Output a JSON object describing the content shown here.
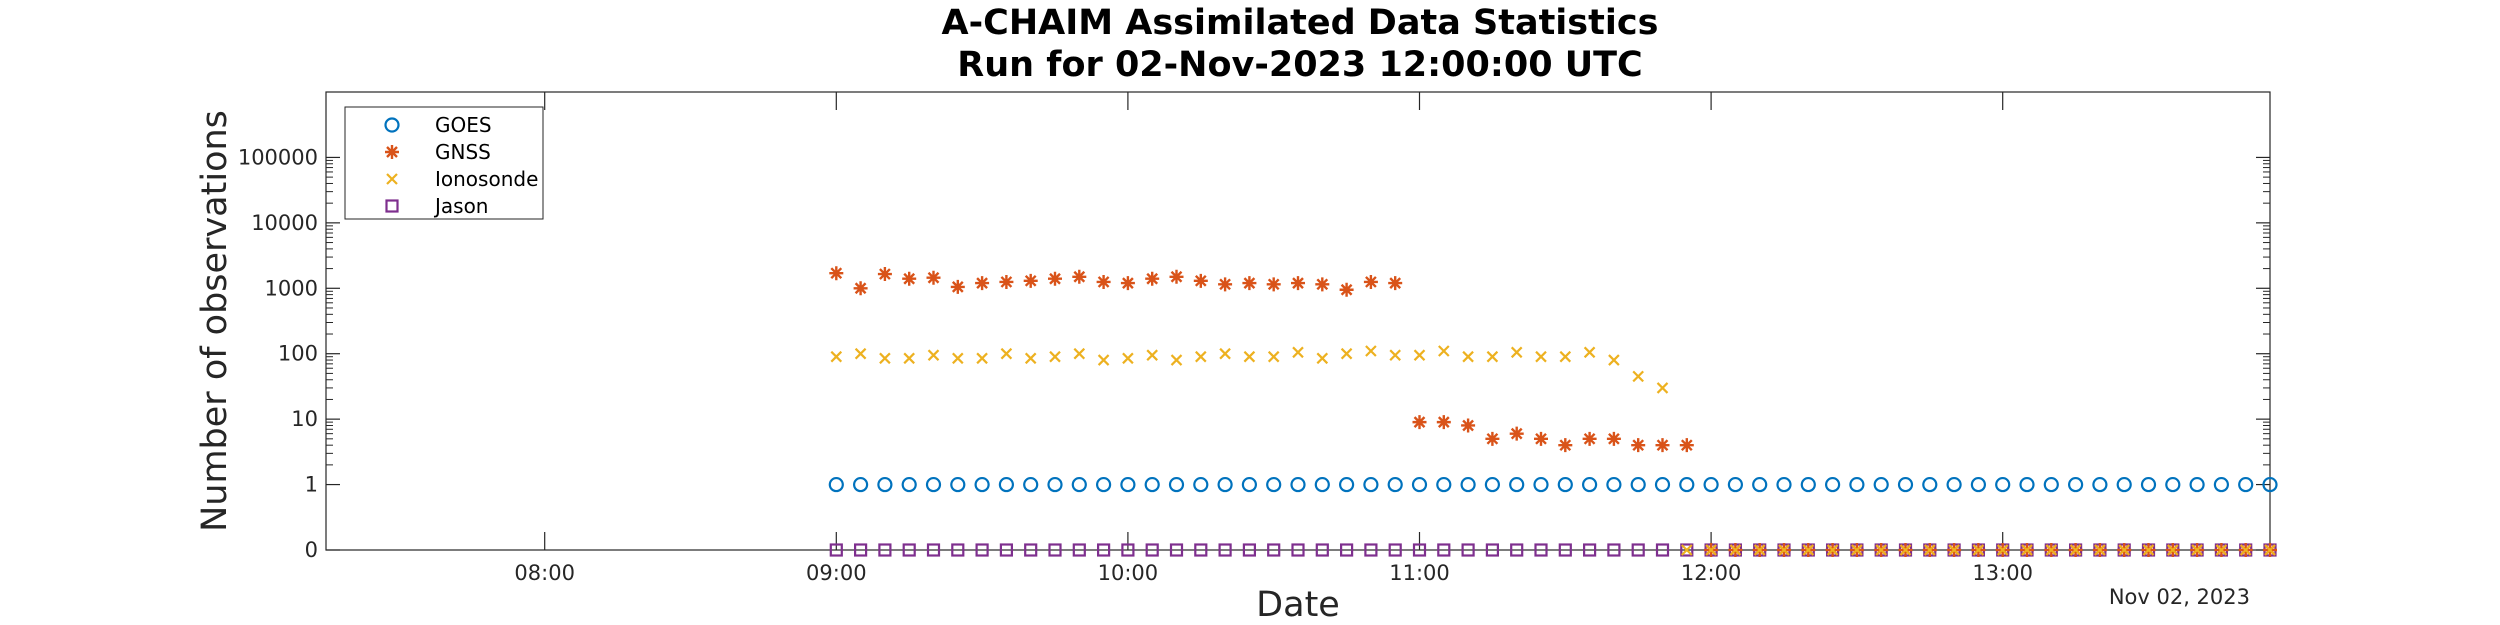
{
  "chart_data": {
    "type": "scatter",
    "title": [
      "A-CHAIM Assimilated Data Statistics",
      "Run for 02-Nov-2023 12:00:00 UTC"
    ],
    "xlabel": "Date",
    "ylabel": "Number of observations",
    "x_axis": {
      "type": "time",
      "range": [
        "07:15",
        "13:55"
      ],
      "ticks": [
        "08:00",
        "09:00",
        "10:00",
        "11:00",
        "12:00",
        "13:00"
      ],
      "date_label": "Nov 02, 2023"
    },
    "y_axis": {
      "scale": "log",
      "range": [
        0,
        100000
      ],
      "ticks": [
        0,
        1,
        10,
        100,
        1000,
        10000,
        100000
      ],
      "tick_labels": [
        "0",
        "1",
        "10",
        "100",
        "1000",
        "10000",
        "100000"
      ]
    },
    "legend": {
      "position": "top-left",
      "entries": [
        "GOES",
        "GNSS",
        "Ionosonde",
        "Jason"
      ]
    },
    "grid": false,
    "series": [
      {
        "name": "GOES",
        "marker": "circle",
        "color": "#0072BD",
        "x": [
          "09:00",
          "09:05",
          "09:10",
          "09:15",
          "09:20",
          "09:25",
          "09:30",
          "09:35",
          "09:40",
          "09:45",
          "09:50",
          "09:55",
          "10:00",
          "10:05",
          "10:10",
          "10:15",
          "10:20",
          "10:25",
          "10:30",
          "10:35",
          "10:40",
          "10:45",
          "10:50",
          "10:55",
          "11:00",
          "11:05",
          "11:10",
          "11:15",
          "11:20",
          "11:25",
          "11:30",
          "11:35",
          "11:40",
          "11:45",
          "11:50",
          "11:55",
          "12:00",
          "12:05",
          "12:10",
          "12:15",
          "12:20",
          "12:25",
          "12:30",
          "12:35",
          "12:40",
          "12:45",
          "12:50",
          "12:55",
          "13:00",
          "13:05",
          "13:10",
          "13:15",
          "13:20",
          "13:25",
          "13:30",
          "13:35",
          "13:40",
          "13:45",
          "13:50",
          "13:55"
        ],
        "y": [
          1,
          1,
          1,
          1,
          1,
          1,
          1,
          1,
          1,
          1,
          1,
          1,
          1,
          1,
          1,
          1,
          1,
          1,
          1,
          1,
          1,
          1,
          1,
          1,
          1,
          1,
          1,
          1,
          1,
          1,
          1,
          1,
          1,
          1,
          1,
          1,
          1,
          1,
          1,
          1,
          1,
          1,
          1,
          1,
          1,
          1,
          1,
          1,
          1,
          1,
          1,
          1,
          1,
          1,
          1,
          1,
          1,
          1,
          1,
          1
        ]
      },
      {
        "name": "GNSS",
        "marker": "asterisk",
        "color": "#D95319",
        "x": [
          "09:00",
          "09:05",
          "09:10",
          "09:15",
          "09:20",
          "09:25",
          "09:30",
          "09:35",
          "09:40",
          "09:45",
          "09:50",
          "09:55",
          "10:00",
          "10:05",
          "10:10",
          "10:15",
          "10:20",
          "10:25",
          "10:30",
          "10:35",
          "10:40",
          "10:45",
          "10:50",
          "10:55",
          "11:00",
          "11:05",
          "11:10",
          "11:15",
          "11:20",
          "11:25",
          "11:30",
          "11:35",
          "11:40",
          "11:45",
          "11:50",
          "11:55"
        ],
        "y": [
          1700,
          1000,
          1650,
          1400,
          1450,
          1050,
          1200,
          1250,
          1300,
          1400,
          1500,
          1250,
          1200,
          1400,
          1500,
          1300,
          1150,
          1200,
          1150,
          1200,
          1150,
          950,
          1250,
          1200,
          9,
          9,
          8,
          5,
          6,
          5,
          4,
          5,
          5,
          4,
          4,
          4
        ]
      },
      {
        "name": "Ionosonde",
        "marker": "x",
        "color": "#EDB120",
        "x": [
          "09:00",
          "09:05",
          "09:10",
          "09:15",
          "09:20",
          "09:25",
          "09:30",
          "09:35",
          "09:40",
          "09:45",
          "09:50",
          "09:55",
          "10:00",
          "10:05",
          "10:10",
          "10:15",
          "10:20",
          "10:25",
          "10:30",
          "10:35",
          "10:40",
          "10:45",
          "10:50",
          "10:55",
          "11:00",
          "11:05",
          "11:10",
          "11:15",
          "11:20",
          "11:25",
          "11:30",
          "11:35",
          "11:40",
          "11:45",
          "11:50"
        ],
        "y": [
          90,
          100,
          85,
          85,
          95,
          85,
          85,
          100,
          85,
          90,
          100,
          80,
          85,
          95,
          80,
          90,
          100,
          90,
          90,
          105,
          85,
          100,
          110,
          95,
          95,
          110,
          90,
          90,
          105,
          90,
          90,
          105,
          80,
          45,
          30
        ]
      },
      {
        "name": "Jason",
        "marker": "square",
        "color": "#7E2F8E",
        "x": [
          "09:00",
          "09:05",
          "09:10",
          "09:15",
          "09:20",
          "09:25",
          "09:30",
          "09:35",
          "09:40",
          "09:45",
          "09:50",
          "09:55",
          "10:00",
          "10:05",
          "10:10",
          "10:15",
          "10:20",
          "10:25",
          "10:30",
          "10:35",
          "10:40",
          "10:45",
          "10:50",
          "10:55",
          "11:00",
          "11:05",
          "11:10",
          "11:15",
          "11:20",
          "11:25",
          "11:30",
          "11:35",
          "11:40",
          "11:45",
          "11:50",
          "11:55",
          "12:00",
          "12:05",
          "12:10",
          "12:15",
          "12:20",
          "12:25",
          "12:30",
          "12:35",
          "12:40",
          "12:45",
          "12:50",
          "12:55",
          "13:00",
          "13:05",
          "13:10",
          "13:15",
          "13:20",
          "13:25",
          "13:30",
          "13:35",
          "13:40",
          "13:45",
          "13:50",
          "13:55"
        ],
        "y": [
          0,
          0,
          0,
          0,
          0,
          0,
          0,
          0,
          0,
          0,
          0,
          0,
          0,
          0,
          0,
          0,
          0,
          0,
          0,
          0,
          0,
          0,
          0,
          0,
          0,
          0,
          0,
          0,
          0,
          0,
          0,
          0,
          0,
          0,
          0,
          0,
          0,
          0,
          0,
          0,
          0,
          0,
          0,
          0,
          0,
          0,
          0,
          0,
          0,
          0,
          0,
          0,
          0,
          0,
          0,
          0,
          0,
          0,
          0,
          0
        ]
      },
      {
        "name": "",
        "marker": "asterisk",
        "color": "#D95319",
        "x": [
          "12:00",
          "12:05",
          "12:10",
          "12:15",
          "12:20",
          "12:25",
          "12:30",
          "12:35",
          "12:40",
          "12:45",
          "12:50",
          "12:55",
          "13:00",
          "13:05",
          "13:10",
          "13:15",
          "13:20",
          "13:25",
          "13:30",
          "13:35",
          "13:40",
          "13:45",
          "13:50",
          "13:55"
        ],
        "y": [
          0,
          0,
          0,
          0,
          0,
          0,
          0,
          0,
          0,
          0,
          0,
          0,
          0,
          0,
          0,
          0,
          0,
          0,
          0,
          0,
          0,
          0,
          0,
          0
        ]
      },
      {
        "name": "",
        "marker": "x",
        "color": "#EDB120",
        "x": [
          "11:55",
          "12:00",
          "12:05",
          "12:10",
          "12:15",
          "12:20",
          "12:25",
          "12:30",
          "12:35",
          "12:40",
          "12:45",
          "12:50",
          "12:55",
          "13:00",
          "13:05",
          "13:10",
          "13:15",
          "13:20",
          "13:25",
          "13:30",
          "13:35",
          "13:40",
          "13:45",
          "13:50",
          "13:55"
        ],
        "y": [
          0,
          0,
          0,
          0,
          0,
          0,
          0,
          0,
          0,
          0,
          0,
          0,
          0,
          0,
          0,
          0,
          0,
          0,
          0,
          0,
          0,
          0,
          0,
          0,
          0
        ]
      }
    ]
  }
}
